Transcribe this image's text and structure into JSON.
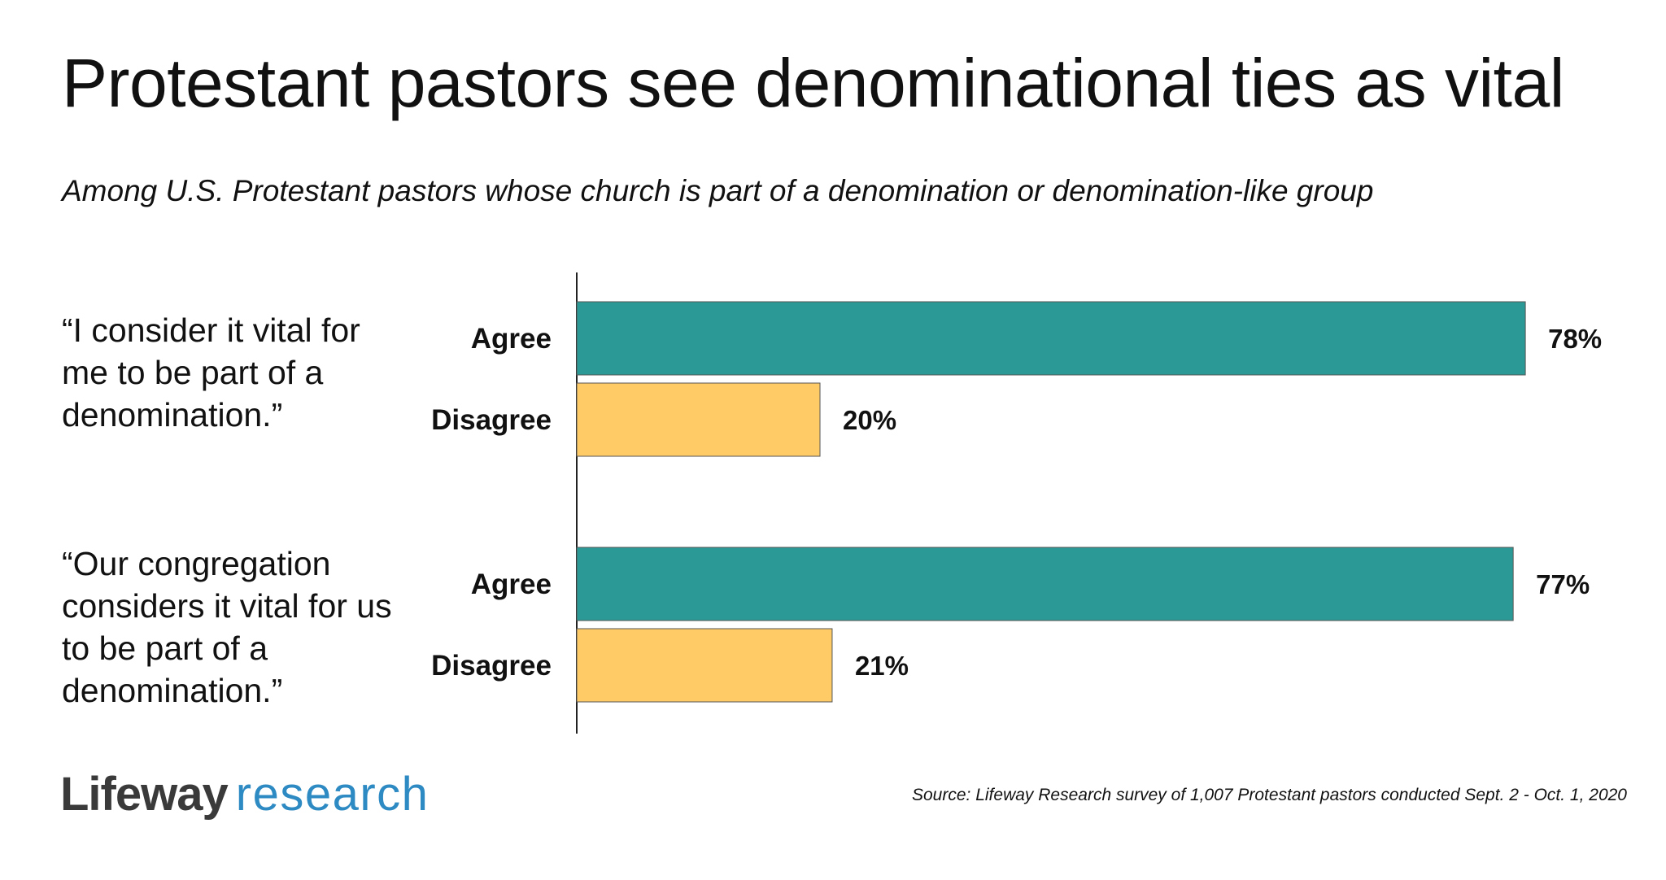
{
  "title": "Protestant pastors see denominational ties as vital",
  "subtitle": "Among U.S. Protestant pastors whose church is part of a denomination or denomination-like group",
  "statements": [
    "“I consider it vital for me to be part of a denomination.”",
    "“Our congregation considers it vital for us to be part of a denomination.”"
  ],
  "chart_data": {
    "type": "bar",
    "orientation": "horizontal",
    "groups": [
      {
        "statement": "“I consider it vital for me to be part of a denomination.”",
        "bars": [
          {
            "label": "Agree",
            "value": 78,
            "display": "78%"
          },
          {
            "label": "Disagree",
            "value": 20,
            "display": "20%"
          }
        ]
      },
      {
        "statement": "“Our congregation considers it vital for us to be part of a denomination.”",
        "bars": [
          {
            "label": "Agree",
            "value": 77,
            "display": "77%"
          },
          {
            "label": "Disagree",
            "value": 21,
            "display": "21%"
          }
        ]
      }
    ],
    "xlim": [
      0,
      100
    ],
    "grid": false,
    "legend": "none",
    "colors": {
      "Agree": "#2b9a97",
      "Disagree": "#fecb66"
    }
  },
  "logo": {
    "word1": "Lifeway",
    "word2": "research"
  },
  "source": "Source: Lifeway Research survey of 1,007 Protestant pastors conducted Sept. 2 - Oct. 1, 2020"
}
